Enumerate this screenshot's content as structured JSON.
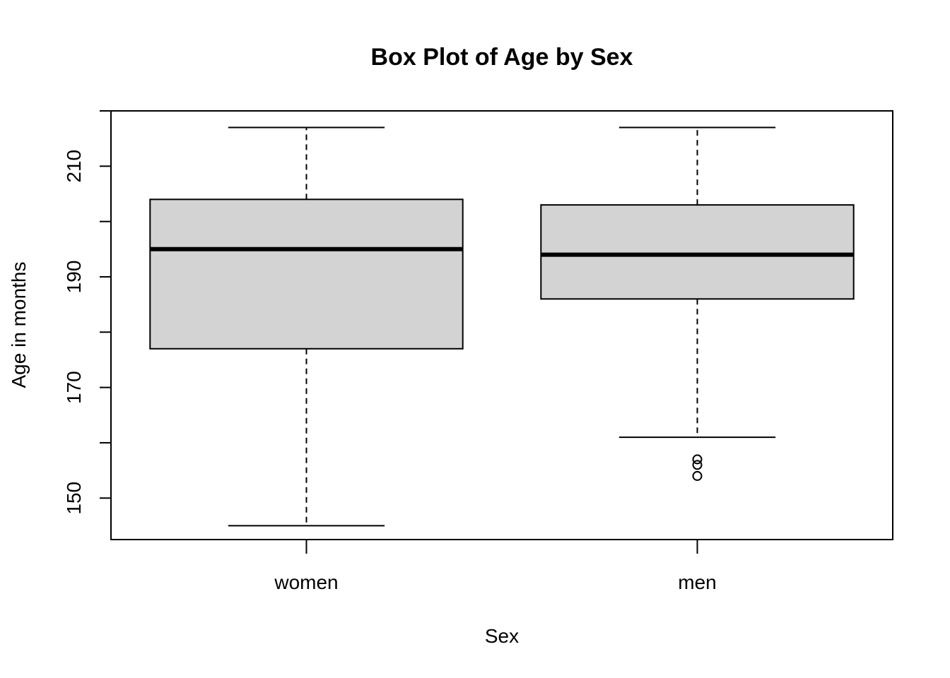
{
  "chart_data": {
    "type": "box",
    "title": "Box Plot of Age by Sex",
    "xlabel": "Sex",
    "ylabel": "Age in months",
    "categories": [
      "women",
      "men"
    ],
    "ylim": [
      142.5,
      220
    ],
    "yticks": [
      150,
      170,
      190,
      210
    ],
    "grid": false,
    "legend": "none",
    "colors": {
      "box_fill": "#d3d3d3",
      "stroke": "#000000"
    },
    "boxes": [
      {
        "category": "women",
        "whisker_low": 145,
        "q1": 177,
        "median": 195,
        "q3": 204,
        "whisker_high": 217,
        "outliers": []
      },
      {
        "category": "men",
        "whisker_low": 161,
        "q1": 186,
        "median": 194,
        "q3": 203,
        "whisker_high": 217,
        "outliers": [
          154,
          156,
          157
        ]
      }
    ]
  }
}
